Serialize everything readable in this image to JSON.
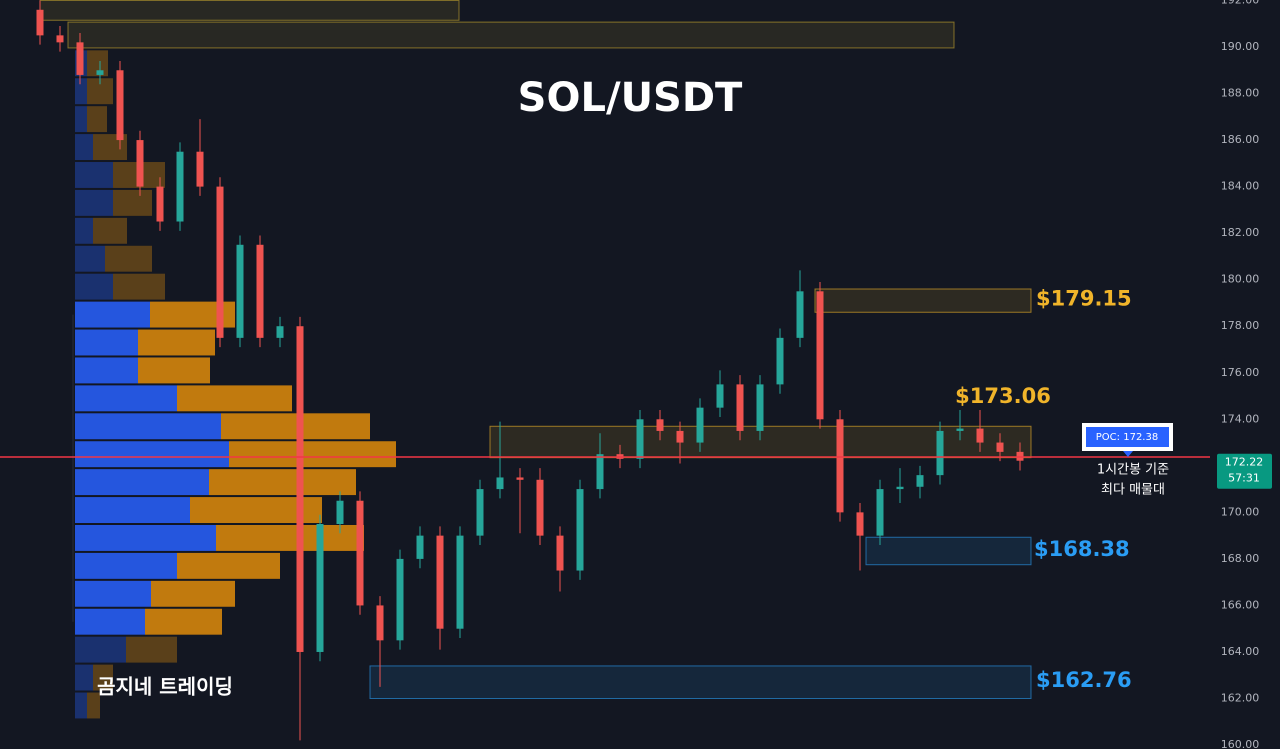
{
  "chart_data": {
    "type": "candlestick",
    "title": "SOL/USDT",
    "watermark": "곰지네 트레이딩",
    "ylim": [
      159.83,
      192.02
    ],
    "yticks": [
      {
        "value": 160,
        "label": "160.00"
      },
      {
        "value": 162,
        "label": "162.00"
      },
      {
        "value": 164,
        "label": "164.00"
      },
      {
        "value": 166,
        "label": "166.00"
      },
      {
        "value": 168,
        "label": "168.00"
      },
      {
        "value": 170,
        "label": "170.00"
      },
      {
        "value": 172,
        "label": "172.00"
      },
      {
        "value": 174,
        "label": "174.00"
      },
      {
        "value": 176,
        "label": "176.00"
      },
      {
        "value": 178,
        "label": "178.00"
      },
      {
        "value": 180,
        "label": "180.00"
      },
      {
        "value": 182,
        "label": "182.00"
      },
      {
        "value": 184,
        "label": "184.00"
      },
      {
        "value": 186,
        "label": "186.00"
      },
      {
        "value": 188,
        "label": "188.00"
      },
      {
        "value": 190,
        "label": "190.00"
      },
      {
        "value": 192,
        "label": "192.00"
      }
    ],
    "grid": false,
    "up_color": "#26a69a",
    "down_color": "#ef5350",
    "ohlc": [
      [
        191.6,
        192.0,
        190.1,
        190.5
      ],
      [
        190.5,
        190.9,
        189.8,
        190.2
      ],
      [
        190.2,
        190.6,
        188.4,
        188.8
      ],
      [
        188.8,
        189.4,
        188.4,
        189
      ],
      [
        189,
        189.4,
        185.6,
        186
      ],
      [
        186,
        186.4,
        183.6,
        184
      ],
      [
        184,
        184.4,
        182.1,
        182.5
      ],
      [
        182.5,
        185.9,
        182.1,
        185.5
      ],
      [
        185.5,
        186.9,
        183.6,
        184
      ],
      [
        184,
        184.4,
        177.1,
        177.5
      ],
      [
        177.5,
        181.9,
        177.1,
        181.5
      ],
      [
        181.5,
        181.9,
        177.1,
        177.5
      ],
      [
        177.5,
        178.4,
        177.1,
        178
      ],
      [
        178,
        178.4,
        160.2,
        164
      ],
      [
        164,
        169.9,
        163.6,
        169.5
      ],
      [
        169.5,
        170.9,
        169.1,
        170.5
      ],
      [
        170.5,
        170.9,
        165.6,
        166
      ],
      [
        166,
        166.4,
        162.5,
        164.5
      ],
      [
        164.5,
        168.4,
        164.1,
        168
      ],
      [
        168,
        169.4,
        167.6,
        169
      ],
      [
        169,
        169.4,
        164.1,
        165
      ],
      [
        165,
        169.4,
        164.6,
        169
      ],
      [
        169,
        171.4,
        168.6,
        171
      ],
      [
        171,
        173.9,
        170.6,
        171.5
      ],
      [
        171.5,
        171.9,
        169.1,
        171.4
      ],
      [
        171.4,
        171.9,
        168.6,
        169
      ],
      [
        169,
        169.4,
        166.6,
        167.5
      ],
      [
        167.5,
        171.4,
        167.1,
        171
      ],
      [
        171,
        173.4,
        170.6,
        172.5
      ],
      [
        172.5,
        172.9,
        171.9,
        172.3
      ],
      [
        172.3,
        174.4,
        171.9,
        174
      ],
      [
        174,
        174.4,
        173.1,
        173.5
      ],
      [
        173.5,
        173.9,
        172.1,
        173
      ],
      [
        173,
        174.9,
        172.6,
        174.5
      ],
      [
        174.5,
        176.1,
        174.1,
        175.5
      ],
      [
        175.5,
        175.9,
        173.1,
        173.5
      ],
      [
        173.5,
        175.9,
        173.1,
        175.5
      ],
      [
        175.5,
        177.9,
        175.1,
        177.5
      ],
      [
        177.5,
        180.4,
        177.1,
        179.5
      ],
      [
        179.5,
        179.9,
        173.6,
        174
      ],
      [
        174,
        174.4,
        169.6,
        170
      ],
      [
        170,
        170.4,
        167.5,
        169
      ],
      [
        169,
        171.4,
        168.6,
        171
      ],
      [
        171,
        171.9,
        170.4,
        171.1
      ],
      [
        171.1,
        172.0,
        170.6,
        171.6
      ],
      [
        171.6,
        173.9,
        171.2,
        173.5
      ],
      [
        173.5,
        174.4,
        173.1,
        173.6
      ],
      [
        173.6,
        174.4,
        172.6,
        173
      ],
      [
        173,
        173.4,
        172.2,
        172.6
      ],
      [
        172.6,
        173.0,
        171.8,
        172.22
      ]
    ],
    "countdown": "57:31",
    "profile": {
      "levels": [
        189.3,
        188.1,
        186.9,
        185.7,
        184.5,
        183.3,
        182.1,
        180.9,
        179.7,
        178.5,
        177.3,
        176.1,
        174.9,
        173.7,
        172.5,
        171.3,
        170.1,
        168.9,
        167.7,
        166.5,
        165.3,
        164.1,
        162.9,
        161.7
      ],
      "buy": [
        12,
        12,
        12,
        18,
        38,
        38,
        18,
        30,
        38,
        75,
        63,
        63,
        102,
        146,
        154,
        134,
        115,
        141,
        102,
        76,
        70,
        51,
        18,
        12
      ],
      "sell": [
        21,
        26,
        20,
        34,
        52,
        39,
        34,
        47,
        52,
        85,
        77,
        72,
        115,
        149,
        167,
        147,
        132,
        148,
        103,
        84,
        77,
        51,
        20,
        13
      ],
      "buy_color": "#2962ff",
      "sell_color": "#e08c0b",
      "value_area": [
        165.3,
        178.5
      ]
    },
    "poc": 172.38,
    "poc_label": "POC: 172.38",
    "poc_color": "#f23645",
    "poc_note": [
      "1시간봉 기준",
      "최다 매물대"
    ],
    "zones": [
      {
        "low": 191.15,
        "high": 192.0,
        "color": "#c9a82f"
      },
      {
        "low": 189.96,
        "high": 191.07,
        "color": "#c9a82f"
      },
      {
        "low": 178.6,
        "high": 179.6,
        "color": "#f0b42a",
        "level": {
          "value": 179.15,
          "label": "$179.15"
        }
      },
      {
        "low": 172.35,
        "high": 173.7,
        "color": "#f0b42a",
        "level": {
          "value": 173.06,
          "label": "$173.06"
        }
      },
      {
        "low": 167.75,
        "high": 168.93,
        "color": "#2a9df4",
        "level": {
          "value": 168.38,
          "label": "$168.38"
        }
      },
      {
        "low": 162.0,
        "high": 163.4,
        "color": "#2a9df4",
        "level": {
          "value": 162.76,
          "label": "$162.76"
        }
      }
    ]
  }
}
